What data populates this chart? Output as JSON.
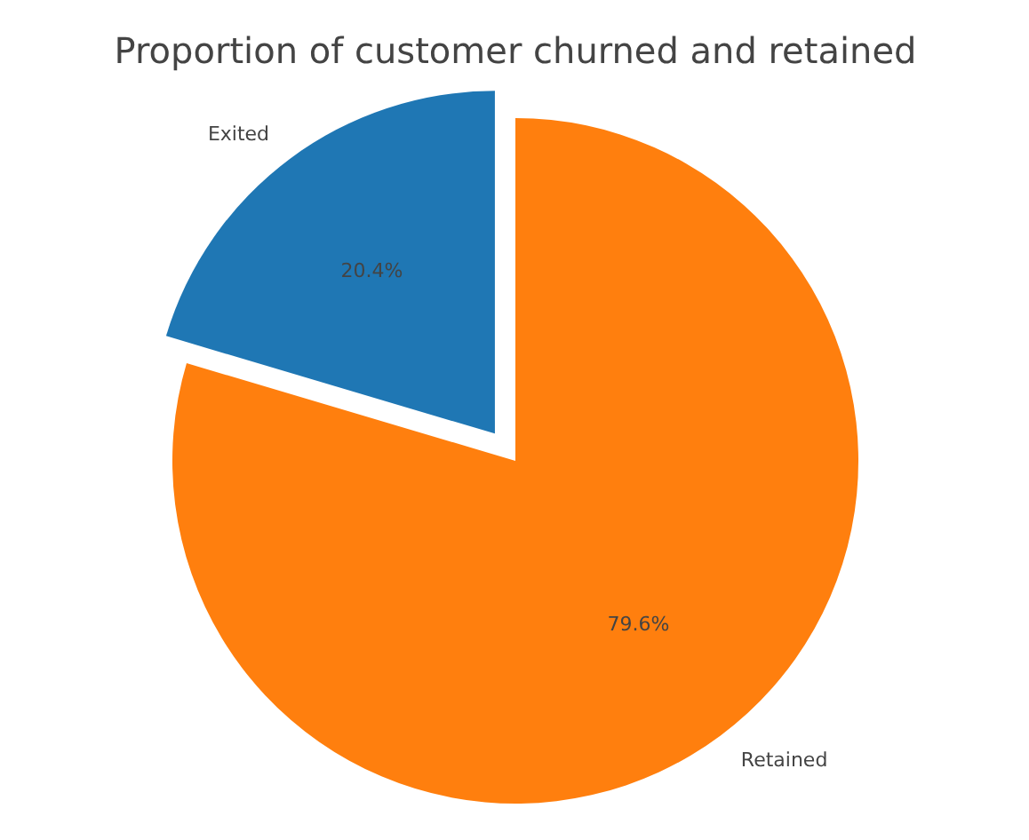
{
  "chart_data": {
    "type": "pie",
    "title": "Proportion of customer churned and retained",
    "categories": [
      "Exited",
      "Retained"
    ],
    "values": [
      20.4,
      79.6
    ],
    "colors": [
      "#1f77b4",
      "#ff7f0e"
    ],
    "value_labels": [
      "20.4%",
      "79.6%"
    ]
  }
}
